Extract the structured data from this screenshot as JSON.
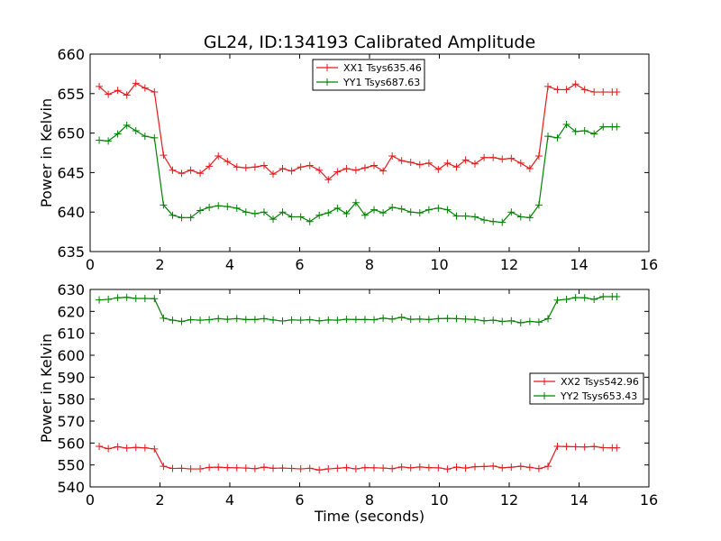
{
  "title": "GL24, ID:134193 Calibrated Amplitude",
  "chart_data": [
    {
      "type": "line",
      "xlabel": "",
      "ylabel": "Power in Kelvin",
      "xlim": [
        0,
        16
      ],
      "ylim": [
        635,
        660
      ],
      "xticks": [
        0,
        2,
        4,
        6,
        8,
        10,
        12,
        14,
        16
      ],
      "yticks": [
        635,
        640,
        645,
        650,
        655,
        660
      ],
      "grid": false,
      "legend": "top-center",
      "x": [
        0.26,
        0.52,
        0.79,
        1.05,
        1.31,
        1.57,
        1.84,
        2.1,
        2.36,
        2.62,
        2.88,
        3.15,
        3.41,
        3.67,
        3.93,
        4.2,
        4.46,
        4.72,
        4.98,
        5.24,
        5.51,
        5.77,
        6.03,
        6.29,
        6.56,
        6.82,
        7.08,
        7.34,
        7.61,
        7.87,
        8.13,
        8.39,
        8.65,
        8.92,
        9.18,
        9.44,
        9.7,
        9.97,
        10.23,
        10.49,
        10.75,
        11.02,
        11.28,
        11.54,
        11.8,
        12.06,
        12.33,
        12.59,
        12.85,
        13.11,
        13.38,
        13.64,
        13.9,
        14.16,
        14.43,
        14.69,
        14.95,
        15.08
      ],
      "series": [
        {
          "name": "XX1 Tsys635.46",
          "color": "#e41a1c",
          "values": [
            655.9,
            654.9,
            655.4,
            654.8,
            656.3,
            655.7,
            655.2,
            647.2,
            645.3,
            644.9,
            645.3,
            644.9,
            645.8,
            647.1,
            646.4,
            645.7,
            645.6,
            645.7,
            645.9,
            644.8,
            645.5,
            645.2,
            645.7,
            645.9,
            645.3,
            644.1,
            645.1,
            645.5,
            645.3,
            645.6,
            645.9,
            645.2,
            647.1,
            646.5,
            646.3,
            646.0,
            646.2,
            645.4,
            646.2,
            645.7,
            646.6,
            646.1,
            646.9,
            646.9,
            646.7,
            646.8,
            646.2,
            645.5,
            647.1,
            655.9,
            655.5,
            655.5,
            656.2,
            655.5,
            655.2,
            655.2,
            655.2,
            655.2
          ]
        },
        {
          "name": "YY1 Tsys687.63",
          "color": "#008000",
          "values": [
            649.1,
            649.0,
            649.9,
            651.0,
            650.3,
            649.6,
            649.4,
            640.9,
            639.6,
            639.3,
            639.3,
            640.2,
            640.6,
            640.8,
            640.7,
            640.5,
            640.0,
            639.8,
            640.0,
            639.1,
            640.0,
            639.4,
            639.4,
            638.8,
            639.6,
            639.9,
            640.5,
            639.8,
            641.2,
            639.6,
            640.3,
            639.9,
            640.6,
            640.4,
            640.0,
            639.9,
            640.3,
            640.5,
            640.3,
            639.5,
            639.5,
            639.4,
            639.0,
            638.8,
            638.7,
            640.0,
            639.4,
            639.3,
            640.9,
            649.6,
            649.4,
            651.1,
            650.2,
            650.3,
            649.9,
            650.8,
            650.8,
            650.8
          ]
        }
      ]
    },
    {
      "type": "line",
      "xlabel": "Time (seconds)",
      "ylabel": "Power in Kelvin",
      "xlim": [
        0,
        16
      ],
      "ylim": [
        540,
        630
      ],
      "xticks": [
        0,
        2,
        4,
        6,
        8,
        10,
        12,
        14,
        16
      ],
      "yticks": [
        540,
        550,
        560,
        570,
        580,
        590,
        600,
        610,
        620,
        630
      ],
      "grid": false,
      "legend": "center-right",
      "x": [
        0.26,
        0.52,
        0.79,
        1.05,
        1.31,
        1.57,
        1.84,
        2.1,
        2.36,
        2.62,
        2.88,
        3.15,
        3.41,
        3.67,
        3.93,
        4.2,
        4.46,
        4.72,
        4.98,
        5.24,
        5.51,
        5.77,
        6.03,
        6.29,
        6.56,
        6.82,
        7.08,
        7.34,
        7.61,
        7.87,
        8.13,
        8.39,
        8.65,
        8.92,
        9.18,
        9.44,
        9.7,
        9.97,
        10.23,
        10.49,
        10.75,
        11.02,
        11.28,
        11.54,
        11.8,
        12.06,
        12.33,
        12.59,
        12.85,
        13.11,
        13.38,
        13.64,
        13.9,
        14.16,
        14.43,
        14.69,
        14.95,
        15.08
      ],
      "series": [
        {
          "name": "XX2 Tsys542.96",
          "color": "#e41a1c",
          "values": [
            558.5,
            557.4,
            558.3,
            557.7,
            558.0,
            557.8,
            557.3,
            549.4,
            548.4,
            548.5,
            548.2,
            548.2,
            548.9,
            549.0,
            548.8,
            548.7,
            548.6,
            548.3,
            549.0,
            548.5,
            548.6,
            548.4,
            548.2,
            548.5,
            547.7,
            548.2,
            548.5,
            548.8,
            548.2,
            548.8,
            548.7,
            548.6,
            548.3,
            549.1,
            548.7,
            549.1,
            548.8,
            548.7,
            548.1,
            549.0,
            548.6,
            549.2,
            549.3,
            549.5,
            548.7,
            549.0,
            549.4,
            548.9,
            548.3,
            549.4,
            558.5,
            558.4,
            558.3,
            558.2,
            558.4,
            557.9,
            557.8,
            557.8
          ]
        },
        {
          "name": "YY2 Tsys653.43",
          "color": "#008000",
          "values": [
            625.2,
            625.5,
            626.2,
            626.4,
            625.9,
            625.9,
            625.8,
            616.9,
            616.0,
            615.4,
            616.2,
            616.0,
            616.2,
            616.7,
            616.4,
            616.7,
            616.3,
            616.3,
            616.7,
            616.1,
            615.6,
            616.1,
            616.0,
            616.2,
            615.7,
            616.1,
            616.0,
            616.4,
            616.3,
            616.3,
            616.2,
            616.9,
            616.5,
            617.3,
            616.4,
            616.5,
            616.3,
            616.7,
            616.8,
            616.7,
            616.5,
            616.3,
            615.7,
            616.0,
            615.4,
            615.7,
            614.8,
            615.4,
            615.1,
            616.7,
            625.1,
            625.5,
            626.3,
            626.2,
            625.5,
            626.7,
            626.7,
            626.7
          ]
        }
      ]
    }
  ]
}
